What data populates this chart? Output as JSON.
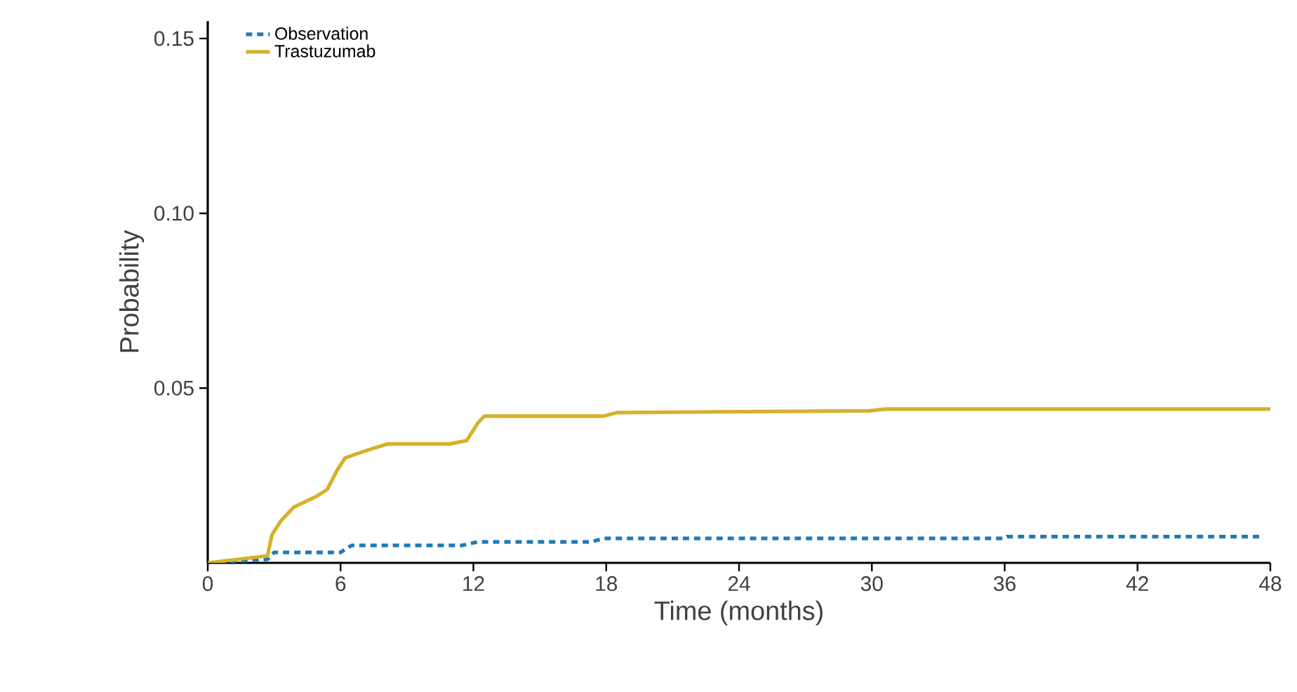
{
  "chart_data": {
    "type": "line",
    "xlabel": "Time (months)",
    "ylabel": "Probability",
    "xlim": [
      0,
      48
    ],
    "ylim": [
      0,
      0.155
    ],
    "xticks": [
      0,
      6,
      12,
      18,
      24,
      30,
      36,
      42,
      48
    ],
    "yticks": [
      {
        "value": 0.05,
        "label": "0.05"
      },
      {
        "value": 0.1,
        "label": "0.10"
      },
      {
        "value": 0.15,
        "label": "0.15"
      }
    ],
    "legend": "top left",
    "grid": false,
    "series": [
      {
        "name": "Observation",
        "color": "#1f7ab8",
        "line_style": "dotted",
        "x": [
          0,
          2.7,
          3,
          6,
          6.5,
          11.5,
          12.2,
          17.3,
          17.9,
          36,
          36.1,
          47.7
        ],
        "values": [
          0,
          0.001,
          0.003,
          0.003,
          0.005,
          0.005,
          0.006,
          0.006,
          0.007,
          0.007,
          0.0075,
          0.0075
        ]
      },
      {
        "name": "Trastuzumab",
        "color": "#d4b22a",
        "line_style": "solid",
        "x": [
          0,
          2.7,
          2.9,
          3.3,
          3.9,
          4.9,
          5.4,
          5.8,
          6.2,
          7.1,
          8.1,
          10.9,
          11.7,
          12.2,
          12.5,
          17.9,
          18.5,
          29.9,
          30.6,
          48
        ],
        "values": [
          0,
          0.002,
          0.008,
          0.012,
          0.016,
          0.019,
          0.021,
          0.026,
          0.03,
          0.032,
          0.034,
          0.034,
          0.035,
          0.04,
          0.042,
          0.042,
          0.043,
          0.0435,
          0.044,
          0.044
        ]
      }
    ]
  }
}
